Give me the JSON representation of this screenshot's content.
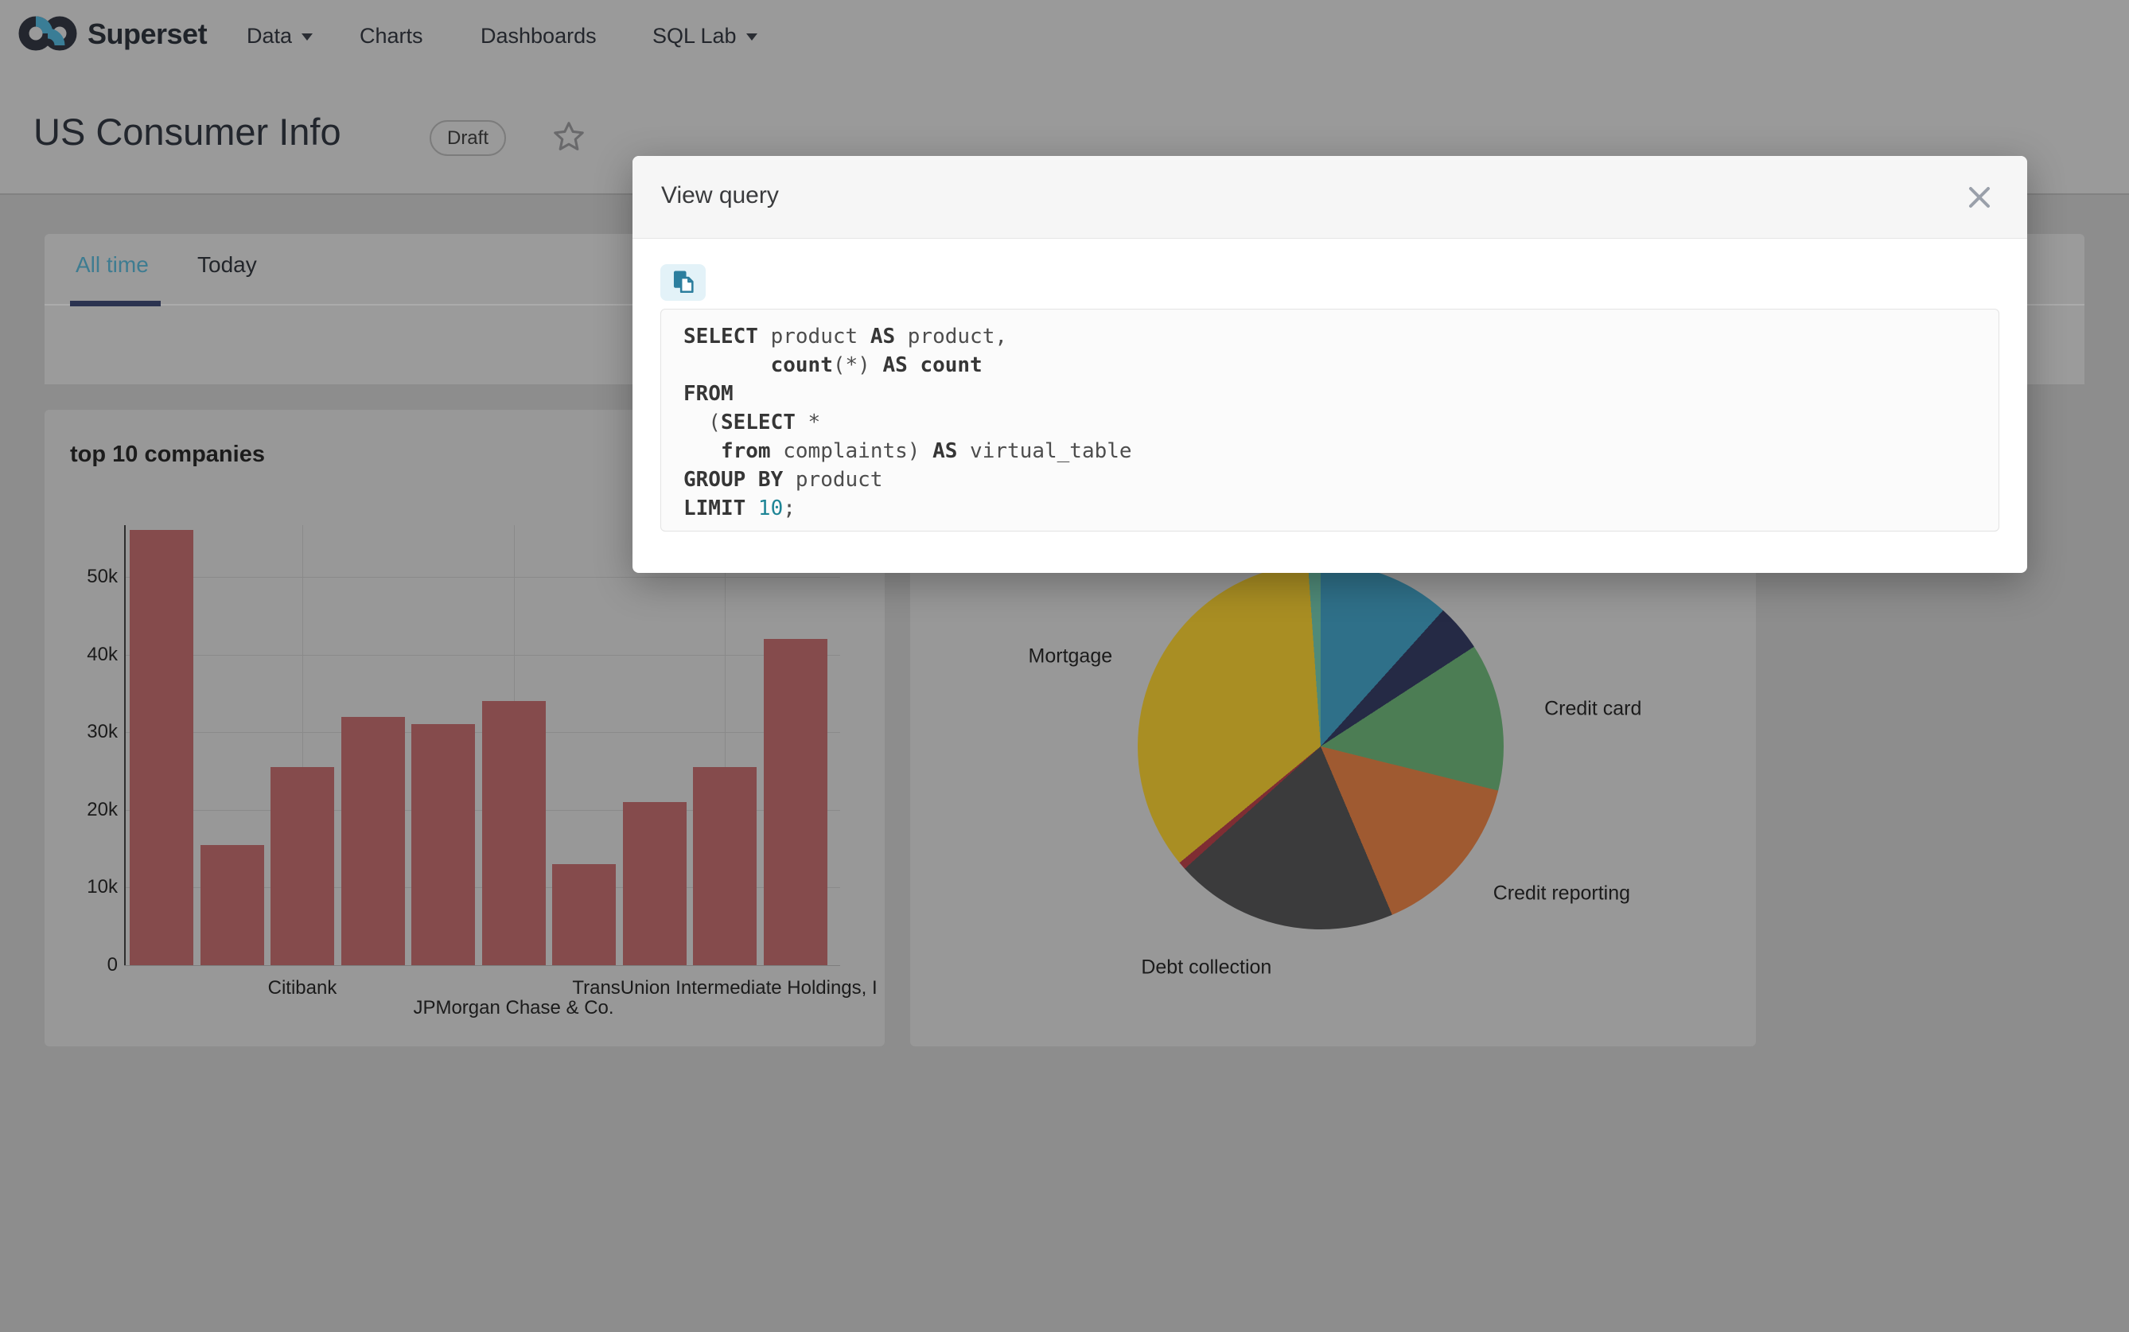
{
  "nav": {
    "brand": "Superset",
    "items": [
      {
        "label": "Data",
        "caret": true
      },
      {
        "label": "Charts",
        "caret": false
      },
      {
        "label": "Dashboards",
        "caret": false
      },
      {
        "label": "SQL Lab",
        "caret": true
      }
    ]
  },
  "header": {
    "title": "US Consumer Info",
    "badge": "Draft"
  },
  "tabs": {
    "items": [
      {
        "label": "All time",
        "active": true
      },
      {
        "label": "Today",
        "active": false
      }
    ]
  },
  "modal": {
    "title": "View query",
    "sql": {
      "text": "SELECT product AS product,\n       count(*) AS count\nFROM\n  (SELECT *\n   from complaints) AS virtual_table\nGROUP BY product\nLIMIT 10;",
      "lines": [
        [
          {
            "t": "SELECT",
            "k": "kw"
          },
          {
            "t": " product ",
            "k": "id"
          },
          {
            "t": "AS",
            "k": "kw"
          },
          {
            "t": " product,",
            "k": "id"
          }
        ],
        [
          {
            "t": "       ",
            "k": "id"
          },
          {
            "t": "count",
            "k": "kw"
          },
          {
            "t": "(*) ",
            "k": "id"
          },
          {
            "t": "AS count",
            "k": "kw"
          }
        ],
        [
          {
            "t": "FROM",
            "k": "kw"
          }
        ],
        [
          {
            "t": "  (",
            "k": "id"
          },
          {
            "t": "SELECT",
            "k": "kw"
          },
          {
            "t": " *",
            "k": "id"
          }
        ],
        [
          {
            "t": "   ",
            "k": "id"
          },
          {
            "t": "from",
            "k": "kw"
          },
          {
            "t": " complaints) ",
            "k": "id"
          },
          {
            "t": "AS",
            "k": "kw"
          },
          {
            "t": " virtual_table",
            "k": "id"
          }
        ],
        [
          {
            "t": "GROUP BY",
            "k": "kw"
          },
          {
            "t": " product",
            "k": "id"
          }
        ],
        [
          {
            "t": "LIMIT",
            "k": "kw"
          },
          {
            "t": " 10",
            "k": "num"
          },
          {
            "t": ";",
            "k": "id"
          }
        ]
      ]
    }
  },
  "charts": {
    "bar": {
      "title": "top 10 companies"
    }
  },
  "chart_data": [
    {
      "type": "bar",
      "title": "top 10 companies",
      "values": [
        56000,
        15500,
        25500,
        32000,
        31000,
        34000,
        13000,
        21000,
        25500,
        42000
      ],
      "bar_color": "#854B4C",
      "y_ticks": [
        {
          "v": 0,
          "label": "0"
        },
        {
          "v": 10000,
          "label": "10k"
        },
        {
          "v": 20000,
          "label": "20k"
        },
        {
          "v": 30000,
          "label": "30k"
        },
        {
          "v": 40000,
          "label": "40k"
        },
        {
          "v": 50000,
          "label": "50k"
        }
      ],
      "x_ticks": [
        {
          "index": 2,
          "label": "Citibank",
          "row": 1
        },
        {
          "index": 5,
          "label": "JPMorgan Chase & Co.",
          "row": 2
        },
        {
          "index": 8,
          "label": "TransUnion Intermediate Holdings, I",
          "row": 1
        }
      ],
      "ylim": [
        0,
        56700
      ],
      "grid": true
    },
    {
      "type": "pie",
      "slices": [
        {
          "label": "",
          "deg": 42,
          "percent": 11.7,
          "color": "#2F7089"
        },
        {
          "label": "",
          "deg": 15,
          "percent": 4.2,
          "color": "#252A45"
        },
        {
          "label": "Credit card",
          "deg": 47,
          "percent": 13.1,
          "color": "#4C7D54"
        },
        {
          "label": "Credit reporting",
          "deg": 53,
          "percent": 14.7,
          "color": "#9F5A31"
        },
        {
          "label": "Debt collection",
          "deg": 71,
          "percent": 19.7,
          "color": "#3B3B3C"
        },
        {
          "label": "",
          "deg": 2.5,
          "percent": 0.7,
          "color": "#7F2D33"
        },
        {
          "label": "Mortgage",
          "deg": 125.5,
          "percent": 34.9,
          "color": "#A98E23"
        },
        {
          "label": "",
          "deg": 4,
          "percent": 1.1,
          "color": "#4F8A78"
        }
      ],
      "legend_position": "labels-outside"
    }
  ],
  "icons": {
    "logo": "infinity-icon",
    "caret": "caret-down-icon",
    "star": "star-icon",
    "close": "close-icon",
    "copy": "copy-icon"
  },
  "colors": {
    "tab_active": "#3E7C91",
    "ink_bar": "#2B3350",
    "sql_number": "#1E8596",
    "copy_icon": "#2C7E9E",
    "bar_fill": "#854B4C"
  }
}
